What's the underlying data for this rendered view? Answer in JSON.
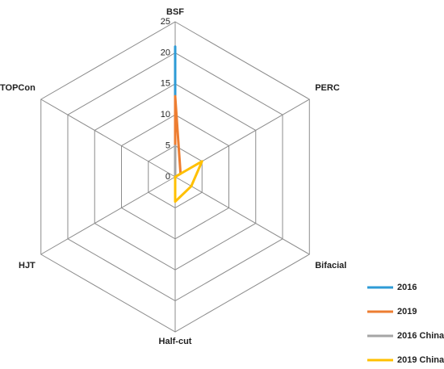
{
  "chart_data": {
    "type": "radar",
    "categories": [
      "BSF",
      "PERC",
      "Bifacial",
      "Half-cut",
      "HJT",
      "TOPCon"
    ],
    "series": [
      {
        "name": "2016",
        "color": "#2e9bd6",
        "values": [
          21,
          0,
          0,
          0,
          0,
          0
        ]
      },
      {
        "name": "2019",
        "color": "#ed7d31",
        "values": [
          13,
          1,
          0,
          0,
          0,
          0
        ]
      },
      {
        "name": "2016 China",
        "color": "#a5a5a5",
        "values": [
          5,
          0,
          0,
          0,
          0,
          0
        ]
      },
      {
        "name": "2019 China",
        "color": "#ffc000",
        "values": [
          0,
          5,
          3,
          4,
          0,
          0
        ]
      }
    ],
    "ylim": [
      0,
      25
    ],
    "yticks": [
      0,
      5,
      10,
      15,
      20,
      25
    ],
    "grid": true
  }
}
